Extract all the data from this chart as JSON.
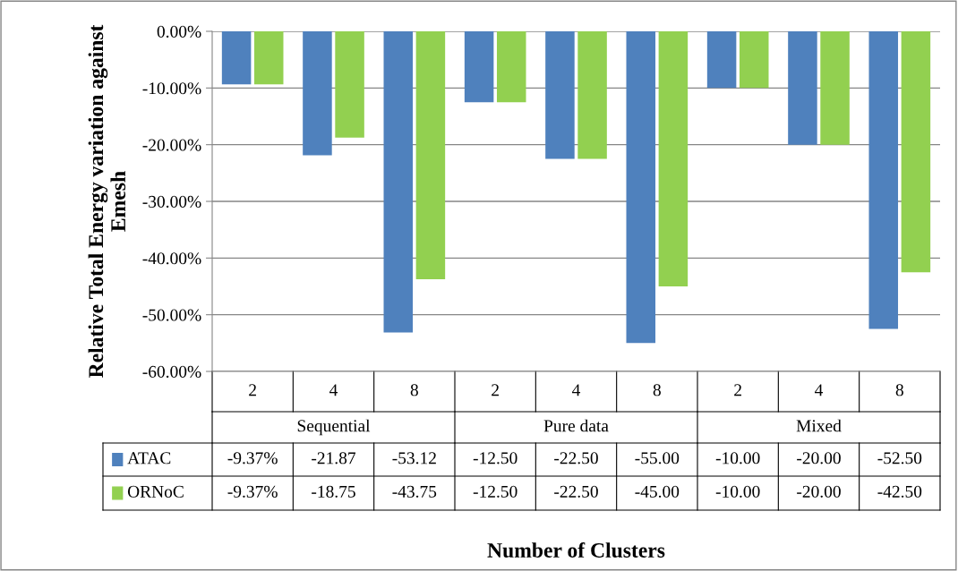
{
  "chart_data": {
    "type": "bar",
    "ylabel": "Relative Total Energy variation against Emesh",
    "categories": [
      "2",
      "4",
      "8",
      "2",
      "4",
      "8",
      "2",
      "4",
      "8"
    ],
    "annotations": [
      "Sequential",
      "Pure data",
      "Mixed",
      "Number of Clusters"
    ],
    "series": [
      {
        "name": "ATAC",
        "color": "#4f81bd",
        "values": [
          -9.37,
          -21.87,
          -53.12,
          -12.5,
          -22.5,
          -55.0,
          -10.0,
          -20.0,
          -52.5
        ],
        "value_labels": [
          "-9.37%",
          "-21.87",
          "-53.12",
          "-12.50",
          "-22.50",
          "-55.00",
          "-10.00",
          "-20.00",
          "-52.50"
        ]
      },
      {
        "name": "ORNoC",
        "color": "#92d050",
        "values": [
          -9.37,
          -18.75,
          -43.75,
          -12.5,
          -22.5,
          -45.0,
          -10.0,
          -20.0,
          -42.5
        ],
        "value_labels": [
          "-9.37%",
          "-18.75",
          "-43.75",
          "-12.50",
          "-22.50",
          "-45.00",
          "-10.00",
          "-20.00",
          "-42.50"
        ]
      }
    ],
    "ylim": [
      -60,
      0
    ],
    "yticks": [
      {
        "value": 0,
        "label": "0.00%"
      },
      {
        "value": -10,
        "label": "-10.00%"
      },
      {
        "value": -20,
        "label": "-20.00%"
      },
      {
        "value": -30,
        "label": "-30.00%"
      },
      {
        "value": -40,
        "label": "-40.00%"
      },
      {
        "value": -50,
        "label": "-50.00%"
      },
      {
        "value": -60,
        "label": "-60.00%"
      }
    ],
    "grid": "y",
    "legend": "bottom left"
  }
}
